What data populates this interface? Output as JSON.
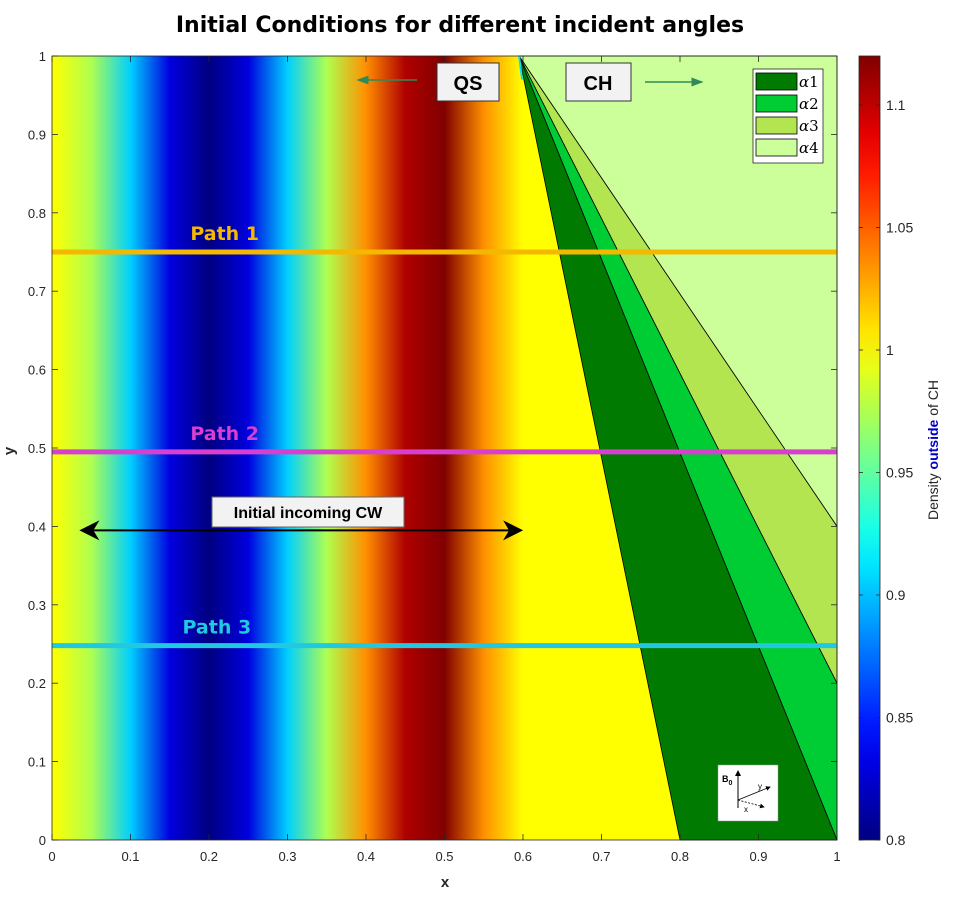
{
  "chart_data": {
    "type": "heatmap",
    "title": "Initial Conditions for different incident angles",
    "xlabel": "x",
    "ylabel": "y",
    "xlim": [
      0,
      1
    ],
    "ylim": [
      0,
      1
    ],
    "xticks": [
      0,
      0.1,
      0.2,
      0.3,
      0.4,
      0.5,
      0.6,
      0.7,
      0.8,
      0.9,
      1
    ],
    "yticks": [
      0,
      0.1,
      0.2,
      0.3,
      0.4,
      0.5,
      0.6,
      0.7,
      0.8,
      0.9,
      1
    ],
    "xtick_labels": [
      "0",
      "0.1",
      "0.2",
      "0.3",
      "0.4",
      "0.5",
      "0.6",
      "0.7",
      "0.8",
      "0.9",
      "1"
    ],
    "ytick_labels": [
      "0",
      "0.1",
      "0.2",
      "0.3",
      "0.4",
      "0.5",
      "0.6",
      "0.7",
      "0.8",
      "0.9",
      "1"
    ],
    "density_profile": {
      "x_extent": [
        0,
        0.6
      ],
      "description_values": {
        "x": [
          0,
          0.05,
          0.1,
          0.15,
          0.2,
          0.25,
          0.3,
          0.35,
          0.4,
          0.45,
          0.5,
          0.55,
          0.6
        ],
        "density": [
          1.0,
          0.975,
          0.905,
          0.83,
          0.8,
          0.83,
          0.905,
          0.975,
          1.035,
          1.105,
          1.12,
          1.035,
          1.0
        ]
      },
      "uniform_value_outside": 1.0
    },
    "colorbar": {
      "label_parts": [
        "Density ",
        "outside",
        " of CH"
      ],
      "label_highlight_color": "#0000cc",
      "range": [
        0.8,
        1.12
      ],
      "ticks": [
        0.8,
        0.85,
        0.9,
        0.95,
        1,
        1.05,
        1.1
      ],
      "tick_labels": [
        "0.8",
        "0.85",
        "0.9",
        "0.95",
        "1",
        "1.05",
        "1.1"
      ],
      "colormap": "jet"
    },
    "ch_regions": [
      {
        "name": "α1",
        "color": "#007a00",
        "apex": [
          0.595,
          1
        ],
        "base": [
          [
            0.8,
            0
          ],
          [
            1,
            0
          ]
        ]
      },
      {
        "name": "α2",
        "color": "#00cc33",
        "apex": [
          0.595,
          1
        ],
        "edge_end": [
          1,
          0.2
        ]
      },
      {
        "name": "α3",
        "color": "#b2e550",
        "apex": [
          0.595,
          1
        ],
        "edge_end": [
          1,
          0.4
        ]
      },
      {
        "name": "α4",
        "color": "#ccff99",
        "apex": [
          0.595,
          1
        ],
        "edge_end": [
          1,
          1
        ]
      }
    ],
    "legend": {
      "position": "top-right",
      "entries": [
        {
          "symbol": "α",
          "index": "1",
          "color": "#007a00"
        },
        {
          "symbol": "α",
          "index": "2",
          "color": "#00cc33"
        },
        {
          "symbol": "α",
          "index": "3",
          "color": "#b2e550"
        },
        {
          "symbol": "α",
          "index": "4",
          "color": "#ccff99"
        }
      ]
    },
    "paths": [
      {
        "name": "Path 1",
        "y": 0.75,
        "color": "#f5b800",
        "label_x": 0.22
      },
      {
        "name": "Path 2",
        "y": 0.495,
        "color": "#d83fd0",
        "label_x": 0.22
      },
      {
        "name": "Path 3",
        "y": 0.248,
        "color": "#22c8e0",
        "label_x": 0.21
      }
    ],
    "region_labels": {
      "qs": {
        "text": "QS",
        "arrow_direction": "left",
        "arrow_color": "#2e8b57"
      },
      "ch": {
        "text": "CH",
        "arrow_direction": "right",
        "arrow_color": "#2e8b57"
      }
    },
    "annotation": {
      "text": "Initial incoming CW",
      "arrow_from_x": 0.04,
      "arrow_to_x": 0.595,
      "arrow_y": 0.395
    },
    "inset": {
      "b_label": "B",
      "b_subscript": "0",
      "y_label": "y",
      "x_label": "x"
    }
  }
}
